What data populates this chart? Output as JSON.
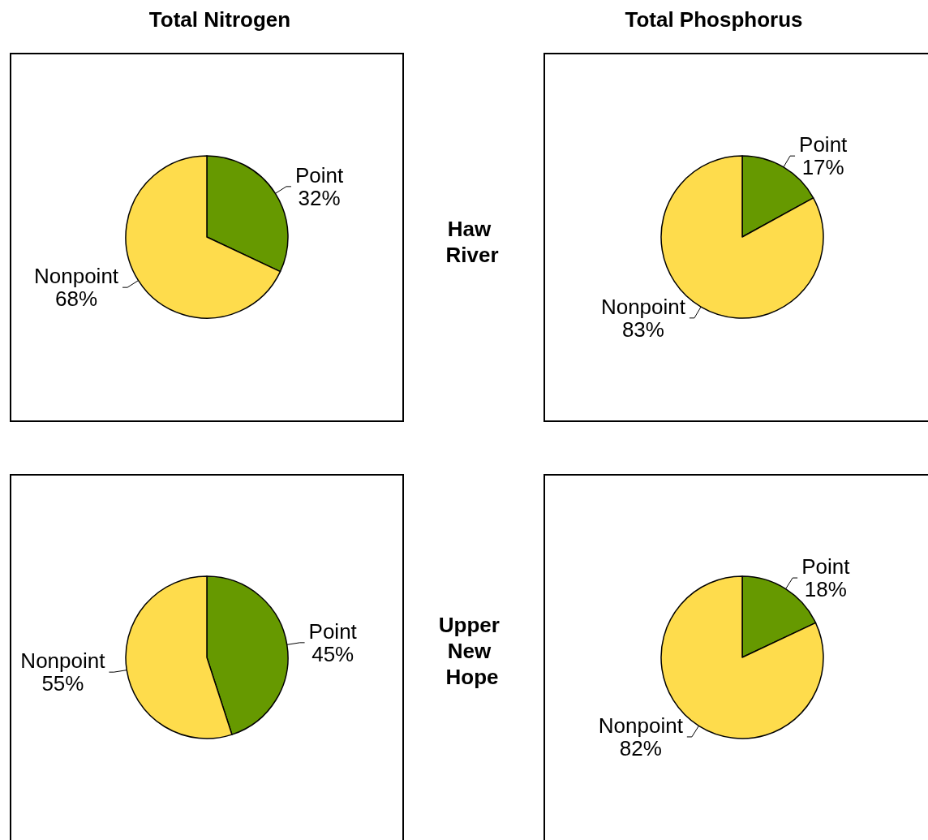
{
  "chart_data": [
    {
      "type": "pie",
      "title": "Total Nitrogen",
      "categories": [
        "Point",
        "Nonpoint"
      ],
      "values": [
        32,
        68
      ],
      "colors": [
        "#669900",
        "#fedc4c"
      ],
      "value_labels": [
        "32%",
        "68%"
      ]
    },
    {
      "type": "pie",
      "title": "Total Phosphorus",
      "annotations": [
        "Haw River"
      ],
      "categories": [
        "Point",
        "Nonpoint"
      ],
      "values": [
        17,
        83
      ],
      "colors": [
        "#669900",
        "#fedc4c"
      ],
      "value_labels": [
        "17%",
        "83%"
      ]
    },
    {
      "type": "pie",
      "categories": [
        "Point",
        "Nonpoint"
      ],
      "values": [
        45,
        55
      ],
      "colors": [
        "#669900",
        "#fedc4c"
      ],
      "value_labels": [
        "45%",
        "55%"
      ]
    },
    {
      "type": "pie",
      "annotations": [
        "Upper New Hope"
      ],
      "categories": [
        "Point",
        "Nonpoint"
      ],
      "values": [
        18,
        82
      ],
      "colors": [
        "#669900",
        "#fedc4c"
      ],
      "value_labels": [
        "18%",
        "82%"
      ]
    }
  ]
}
